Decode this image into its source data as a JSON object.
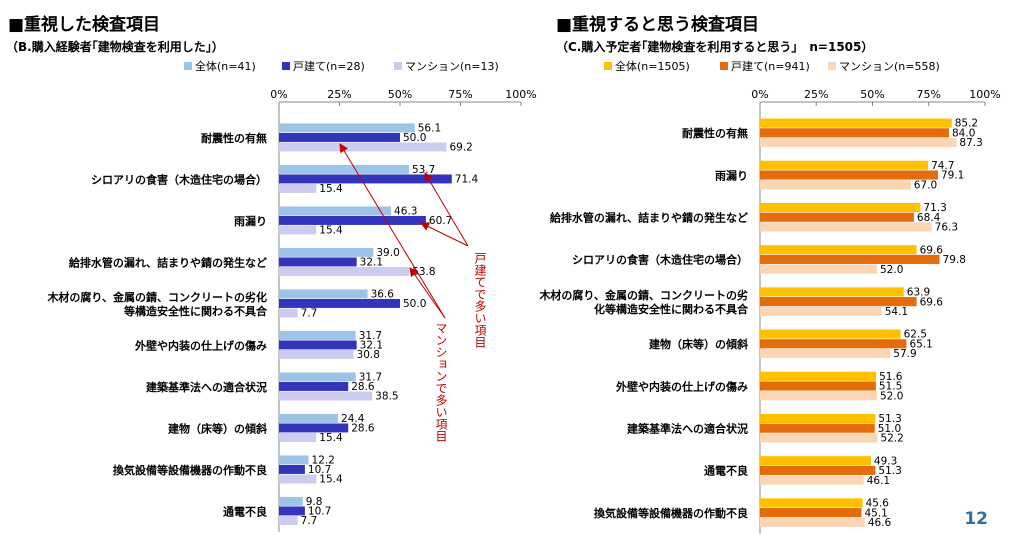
{
  "slide_number": "12",
  "left_panel": {
    "title": "■重視した検査項目",
    "subtitle": "（B.購入経験者｢建物検査を利用した｣）"
  },
  "right_panel": {
    "title": "■重視すると思う検査項目",
    "subtitle": "（C.購入予定者｢建物検査を利用すると思う｣　n=1505）"
  },
  "annotations": {
    "kodate": "戸建てで多い項目",
    "mansion": "マンションで多い項目"
  },
  "colors": {
    "left": [
      "#9dc3e6",
      "#3333bb",
      "#ccccf0"
    ],
    "right": [
      "#ffc000",
      "#e46c0a",
      "#fcd5b4"
    ],
    "annotation": "#c00000"
  },
  "chart_data": [
    {
      "type": "bar",
      "orientation": "horizontal",
      "unit": "%",
      "xlim": [
        0,
        100
      ],
      "ticks": [
        "0%",
        "25%",
        "50%",
        "75%",
        "100%"
      ],
      "legend_position": "top",
      "categories": [
        "耐震性の有無",
        "シロアリの食害（木造住宅の場合）",
        "雨漏り",
        "給排水管の漏れ、詰まりや錆の発生など",
        "木材の腐り、金属の錆、コンクリートの劣化|等構造安全性に関わる不具合",
        "外壁や内装の仕上げの傷み",
        "建築基準法への適合状況",
        "建物（床等）の傾斜",
        "換気設備等設備機器の作動不良",
        "通電不良"
      ],
      "series": [
        {
          "name": "全体(n=41)",
          "values": [
            56.1,
            53.7,
            46.3,
            39.0,
            36.6,
            31.7,
            31.7,
            24.4,
            12.2,
            9.8
          ]
        },
        {
          "name": "戸建て(n=28)",
          "values": [
            50.0,
            71.4,
            60.7,
            32.1,
            50.0,
            32.1,
            28.6,
            28.6,
            10.7,
            10.7
          ]
        },
        {
          "name": "マンション(n=13)",
          "values": [
            69.2,
            15.4,
            15.4,
            53.8,
            7.7,
            30.8,
            38.5,
            15.4,
            15.4,
            7.7
          ]
        }
      ]
    },
    {
      "type": "bar",
      "orientation": "horizontal",
      "unit": "%",
      "xlim": [
        0,
        100
      ],
      "ticks": [
        "0%",
        "25%",
        "50%",
        "75%",
        "100%"
      ],
      "legend_position": "top",
      "categories": [
        "耐震性の有無",
        "雨漏り",
        "給排水管の漏れ、詰まりや錆の発生など",
        "シロアリの食害（木造住宅の場合）",
        "木材の腐り、金属の錆、コンクリートの劣|化等構造安全性に関わる不具合",
        "建物（床等）の傾斜",
        "外壁や内装の仕上げの傷み",
        "建築基準法への適合状況",
        "通電不良",
        "換気設備等設備機器の作動不良"
      ],
      "series": [
        {
          "name": "全体(n=1505)",
          "values": [
            85.2,
            74.7,
            71.3,
            69.6,
            63.9,
            62.5,
            51.6,
            51.3,
            49.3,
            45.6
          ]
        },
        {
          "name": "戸建て(n=941)",
          "values": [
            84.0,
            79.1,
            68.4,
            79.8,
            69.6,
            65.1,
            51.5,
            51.0,
            51.3,
            45.1
          ]
        },
        {
          "name": "マンション(n=558)",
          "values": [
            87.3,
            67.0,
            76.3,
            52.0,
            54.1,
            57.9,
            52.0,
            52.2,
            46.1,
            46.6
          ]
        }
      ]
    }
  ]
}
